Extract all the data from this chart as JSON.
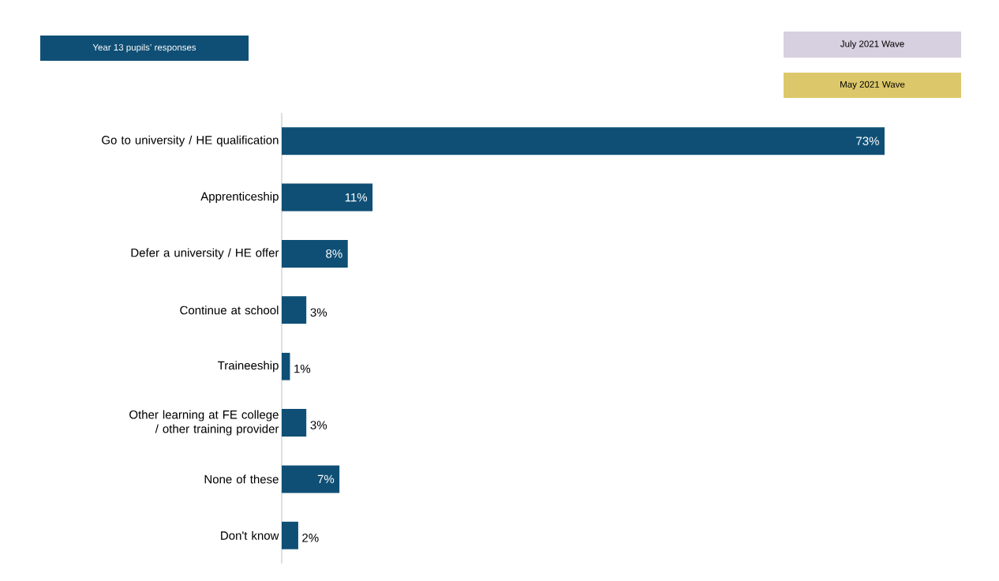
{
  "chart_data": {
    "type": "bar",
    "orientation": "horizontal",
    "title": "Year 13 pupils’ responses",
    "categories": [
      "Go to university / HE qualification",
      "Apprenticeship",
      "Defer a university / HE offer",
      "Continue at school",
      "Traineeship",
      "Other learning at FE college / other training provider",
      "None of these",
      "Don't know"
    ],
    "values": [
      73,
      11,
      8,
      3,
      1,
      3,
      7,
      2
    ],
    "value_labels": [
      "73%",
      "11%",
      "8%",
      "3%",
      "1%",
      "3%",
      "7%",
      "2%"
    ],
    "color": "#0f4f75",
    "annotations": [
      "July 2021 Wave",
      "May 2021 Wave"
    ]
  }
}
